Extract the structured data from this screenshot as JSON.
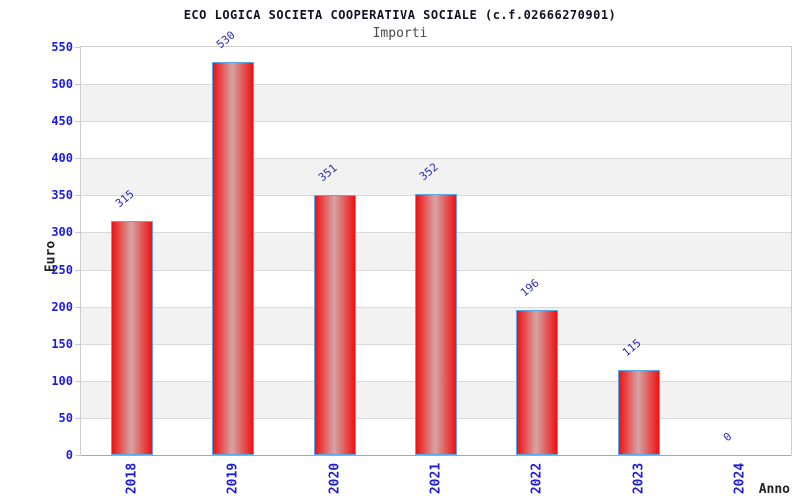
{
  "chart_data": {
    "type": "bar",
    "title": "ECO LOGICA SOCIETA COOPERATIVA SOCIALE (c.f.02666270901)",
    "subtitle": "Importi",
    "xlabel": "Anno",
    "ylabel": "Euro",
    "categories": [
      "2018",
      "2019",
      "2020",
      "2021",
      "2022",
      "2023",
      "2024"
    ],
    "values": [
      315,
      530,
      351,
      352,
      196,
      115,
      0
    ],
    "ylim": [
      0,
      550
    ],
    "ytick_step": 50,
    "yticks": [
      0,
      50,
      100,
      150,
      200,
      250,
      300,
      350,
      400,
      450,
      500,
      550
    ],
    "grid": "horizontal-gridlines-with-alternating-bands",
    "legend": "none",
    "bar_value_labels_rotated": true,
    "x_tick_labels_rotated": true,
    "colors": {
      "tick_label_blue": "#1c1cdc",
      "value_label_blue": "#2a2ab4",
      "bar_edge_red": "#ee1111",
      "bar_center_highlight": "#d6a4a4",
      "bar_border_blue": "#5aa7ea",
      "band_gray": "#f2f2f2",
      "band_white": "#ffffff",
      "gridline": "#d9d9d9",
      "plot_border": "#cccccc",
      "axis_line": "#a8a8a8",
      "tick_mark": "#c6c6ea",
      "title_color": "#111122",
      "subtitle_color": "#4a4a4a",
      "axis_title_color": "#222222"
    }
  }
}
